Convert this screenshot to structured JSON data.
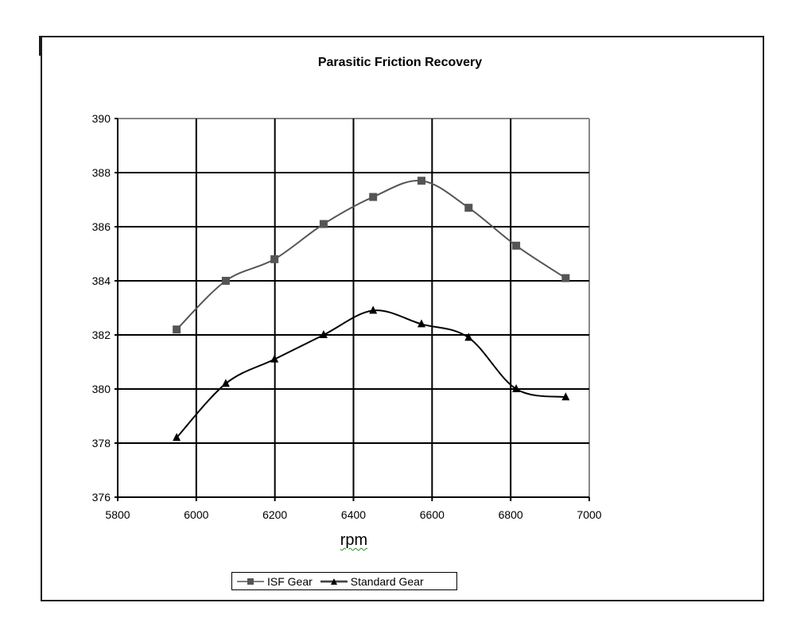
{
  "chart_data": {
    "type": "line",
    "title": "Parasitic Friction Recovery",
    "xlabel": "rpm",
    "ylabel": "",
    "xlim": [
      5800,
      7000
    ],
    "ylim": [
      376,
      390
    ],
    "x_ticks": [
      "5800",
      "6000",
      "6200",
      "6400",
      "6600",
      "6800",
      "7000"
    ],
    "y_ticks": [
      "376",
      "378",
      "380",
      "382",
      "384",
      "386",
      "388",
      "390"
    ],
    "grid": true,
    "legend_position": "bottom",
    "series": [
      {
        "name": "ISF Gear",
        "marker": "square",
        "color": "#555555",
        "x": [
          5950,
          6075,
          6199,
          6324,
          6450,
          6573,
          6693,
          6814,
          6940
        ],
        "values": [
          382.2,
          384.0,
          384.8,
          386.1,
          387.1,
          387.7,
          386.7,
          385.3,
          384.1
        ]
      },
      {
        "name": "Standard Gear",
        "marker": "triangle",
        "color": "#000000",
        "x": [
          5950,
          6075,
          6199,
          6324,
          6450,
          6573,
          6693,
          6814,
          6940
        ],
        "values": [
          378.2,
          380.2,
          381.1,
          382.0,
          382.9,
          382.4,
          381.9,
          380.0,
          379.7
        ]
      }
    ]
  },
  "legend": {
    "items": [
      {
        "label": "ISF Gear"
      },
      {
        "label": "Standard Gear"
      }
    ]
  }
}
